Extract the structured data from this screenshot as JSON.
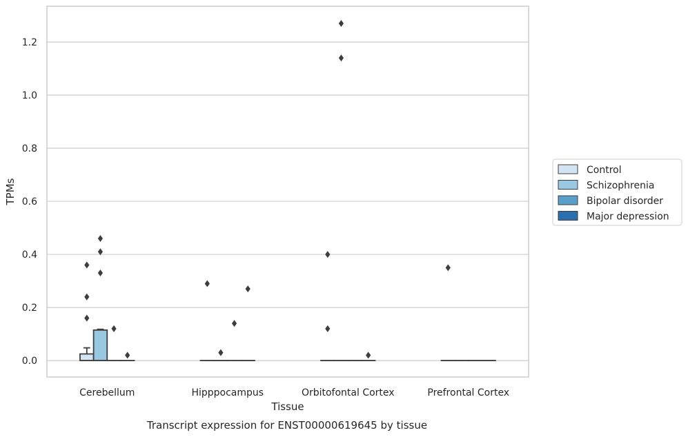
{
  "chart_data": {
    "type": "box",
    "xlabel": "Tissue",
    "ylabel": "TPMs",
    "caption": "Transcript expression for ENST00000619645 by tissue",
    "ylim": [
      -0.062,
      1.335
    ],
    "yticks": [
      0.0,
      0.2,
      0.4,
      0.6,
      0.8,
      1.0,
      1.2
    ],
    "ytick_labels": [
      "0.0",
      "0.2",
      "0.4",
      "0.6",
      "0.8",
      "1.0",
      "1.2"
    ],
    "grid": "horizontal",
    "legend_position": "right",
    "categories": [
      "Cerebellum",
      "Hipppocampus",
      "Orbitofontal Cortex",
      "Prefrontal Cortex"
    ],
    "series": [
      {
        "name": "Control",
        "color": "#d4e4f2",
        "boxes": [
          {
            "q1": 0.0,
            "median": 0.0,
            "q3": 0.025,
            "whisker_low": 0.0,
            "whisker_high": 0.048,
            "outliers": [
              0.16,
              0.24,
              0.36
            ]
          },
          {
            "q1": 0.0,
            "median": 0.0,
            "q3": 0.0,
            "whisker_low": 0.0,
            "whisker_high": 0.0,
            "outliers": [
              0.29
            ]
          },
          {
            "q1": 0.0,
            "median": 0.0,
            "q3": 0.0,
            "whisker_low": 0.0,
            "whisker_high": 0.0,
            "outliers": [
              0.12,
              0.4
            ]
          },
          {
            "q1": 0.0,
            "median": 0.0,
            "q3": 0.0,
            "whisker_low": 0.0,
            "whisker_high": 0.0,
            "outliers": [
              0.35
            ]
          }
        ]
      },
      {
        "name": "Schizophrenia",
        "color": "#9ac8e0",
        "boxes": [
          {
            "q1": 0.0,
            "median": 0.0,
            "q3": 0.115,
            "whisker_low": 0.0,
            "whisker_high": 0.118,
            "outliers": [
              0.33,
              0.41,
              0.46
            ]
          },
          {
            "q1": 0.0,
            "median": 0.0,
            "q3": 0.0,
            "whisker_low": 0.0,
            "whisker_high": 0.0,
            "outliers": [
              0.03
            ]
          },
          {
            "q1": 0.0,
            "median": 0.0,
            "q3": 0.0,
            "whisker_low": 0.0,
            "whisker_high": 0.0,
            "outliers": [
              1.14,
              1.27
            ]
          },
          {
            "q1": 0.0,
            "median": 0.0,
            "q3": 0.0,
            "whisker_low": 0.0,
            "whisker_high": 0.0,
            "outliers": []
          }
        ]
      },
      {
        "name": "Bipolar disorder",
        "color": "#5a9ec9",
        "boxes": [
          {
            "q1": 0.0,
            "median": 0.0,
            "q3": 0.0,
            "whisker_low": 0.0,
            "whisker_high": 0.0,
            "outliers": [
              0.12
            ]
          },
          {
            "q1": 0.0,
            "median": 0.0,
            "q3": 0.0,
            "whisker_low": 0.0,
            "whisker_high": 0.0,
            "outliers": [
              0.14
            ]
          },
          {
            "q1": 0.0,
            "median": 0.0,
            "q3": 0.0,
            "whisker_low": 0.0,
            "whisker_high": 0.0,
            "outliers": []
          },
          {
            "q1": 0.0,
            "median": 0.0,
            "q3": 0.0,
            "whisker_low": 0.0,
            "whisker_high": 0.0,
            "outliers": []
          }
        ]
      },
      {
        "name": "Major depression",
        "color": "#2c6faf",
        "boxes": [
          {
            "q1": 0.0,
            "median": 0.0,
            "q3": 0.0,
            "whisker_low": 0.0,
            "whisker_high": 0.0,
            "outliers": [
              0.02
            ]
          },
          {
            "q1": 0.0,
            "median": 0.0,
            "q3": 0.0,
            "whisker_low": 0.0,
            "whisker_high": 0.0,
            "outliers": [
              0.27
            ]
          },
          {
            "q1": 0.0,
            "median": 0.0,
            "q3": 0.0,
            "whisker_low": 0.0,
            "whisker_high": 0.0,
            "outliers": [
              0.02
            ]
          },
          {
            "q1": 0.0,
            "median": 0.0,
            "q3": 0.0,
            "whisker_low": 0.0,
            "whisker_high": 0.0,
            "outliers": []
          }
        ]
      }
    ]
  }
}
